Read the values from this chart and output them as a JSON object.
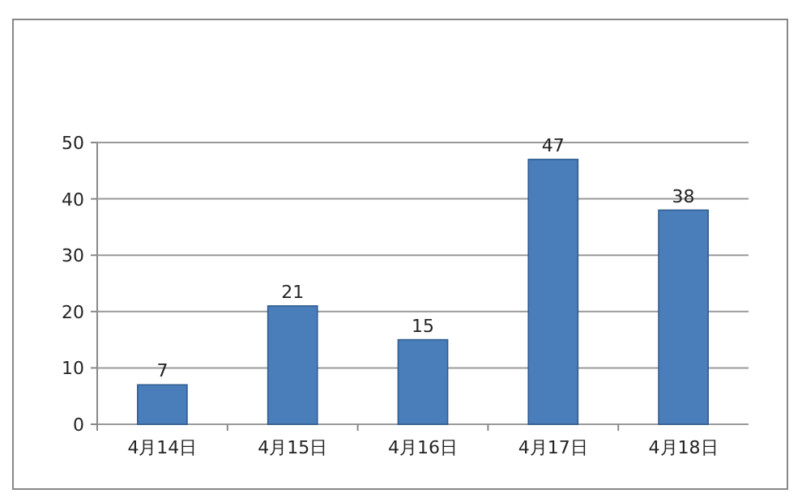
{
  "chart_data": {
    "type": "bar",
    "categories": [
      "4月14日",
      "4月15日",
      "4月16日",
      "4月17日",
      "4月18日"
    ],
    "values": [
      7,
      21,
      15,
      47,
      38
    ],
    "color": "#4a7ebb",
    "ylim": [
      0,
      50
    ],
    "yticks": [
      0,
      10,
      20,
      30,
      40,
      50
    ],
    "grid": "y",
    "data_labels": true
  }
}
